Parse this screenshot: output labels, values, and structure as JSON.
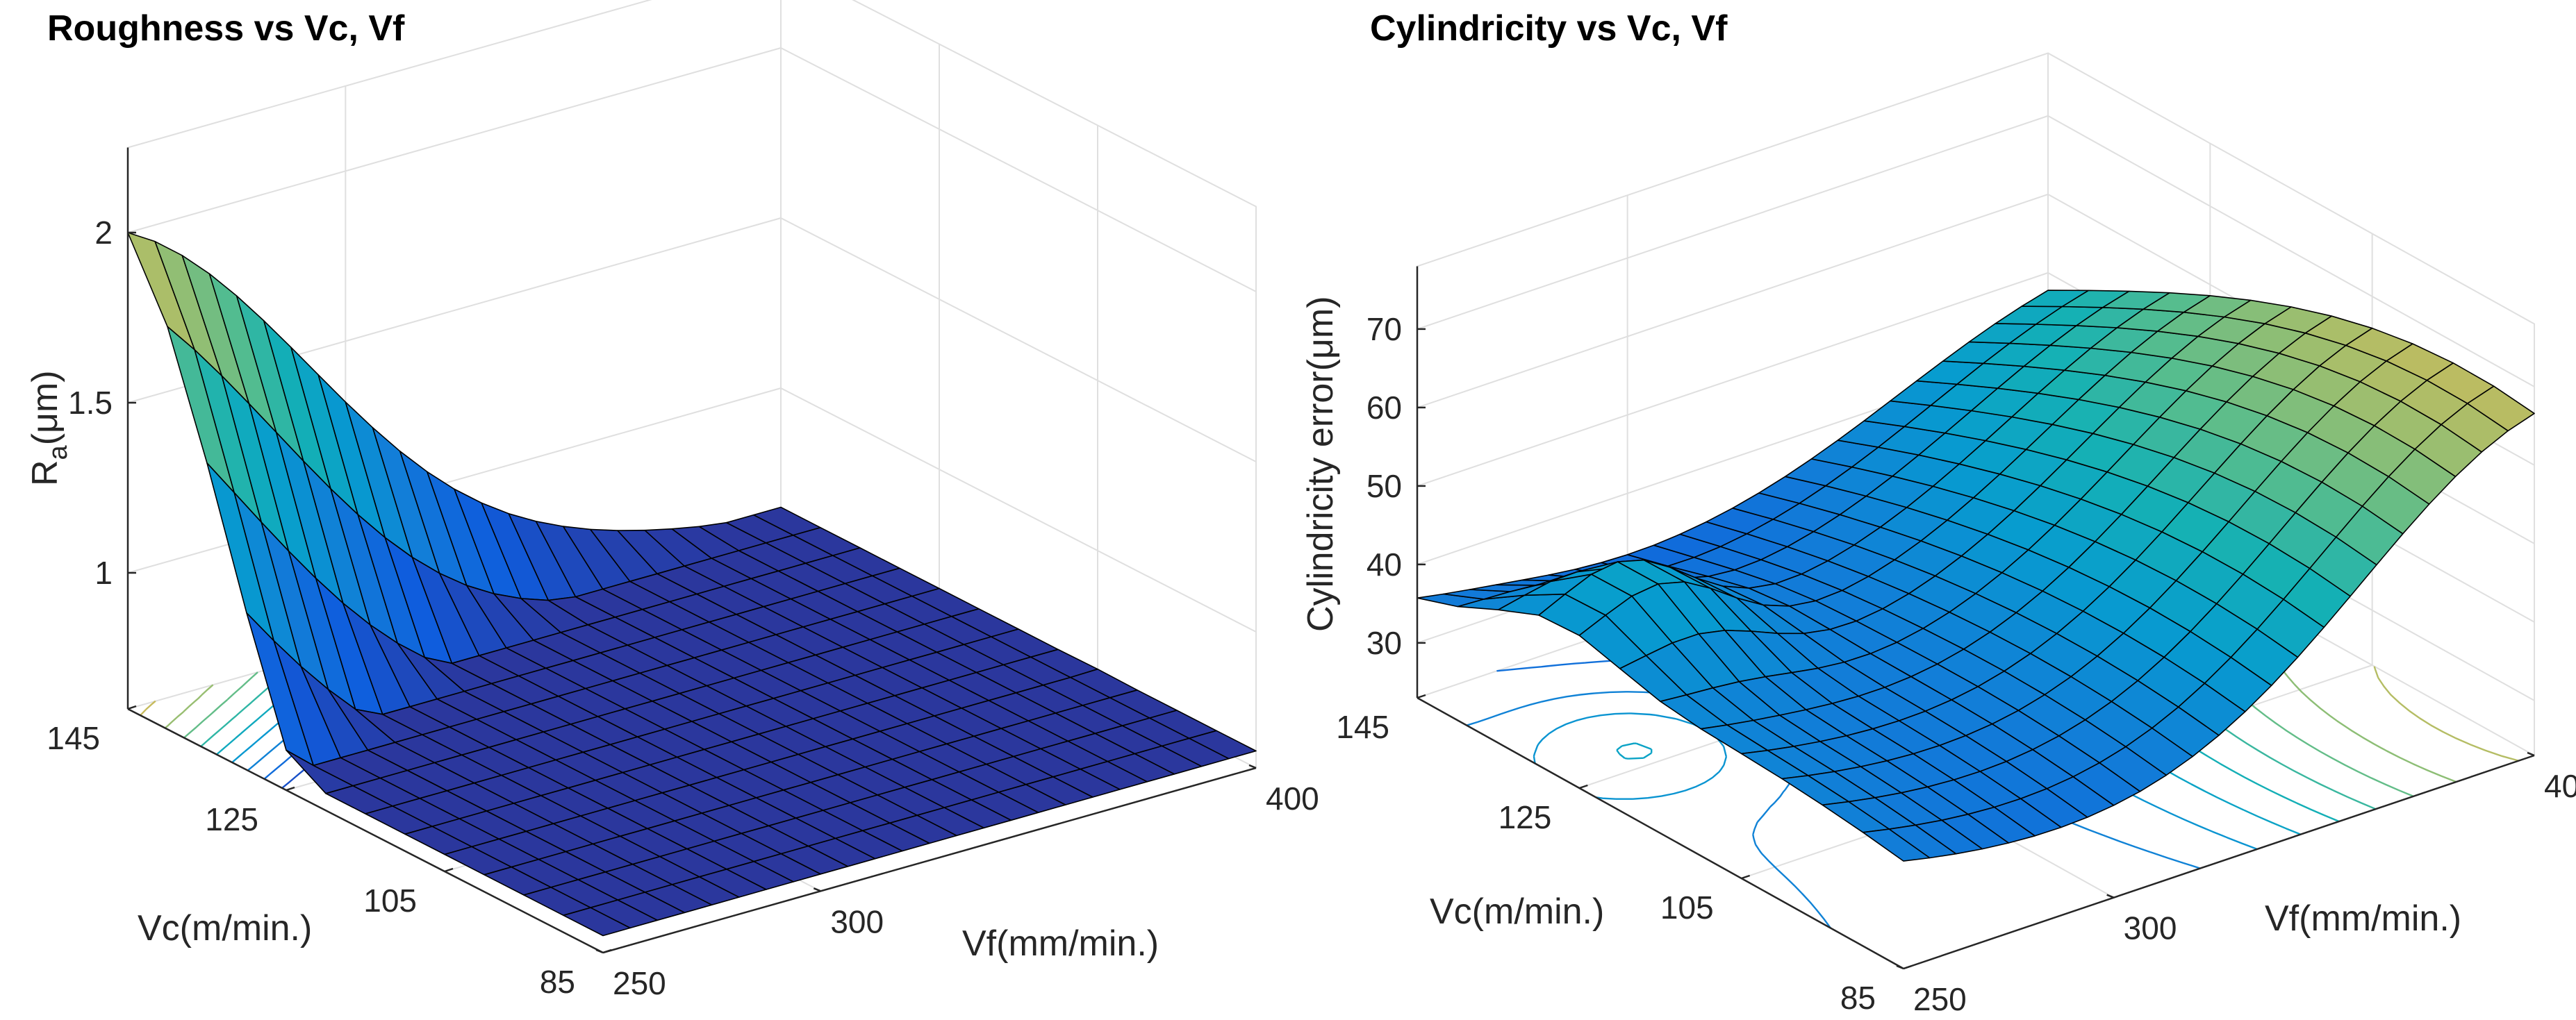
{
  "chart_data": [
    {
      "type": "surface",
      "title": "Roughness vs Vc, Vf",
      "xlabel": "Vf(mm/min.)",
      "ylabel": "Vc(m/min.)",
      "zlabel_main": "R",
      "zlabel_sub": "a",
      "zlabel_unit": "(μm)",
      "x_range": [
        250,
        400
      ],
      "y_range": [
        85,
        145
      ],
      "z_range": [
        0.6,
        2.25
      ],
      "x_ticks": [
        250,
        300,
        400
      ],
      "y_ticks": [
        85,
        105,
        125,
        145
      ],
      "z_ticks": [
        1,
        1.5,
        2
      ],
      "x_tick_labels": [
        "250",
        "300",
        "400"
      ],
      "y_tick_labels": [
        "85",
        "105",
        "125",
        "145"
      ],
      "z_tick_labels": [
        "1",
        "1.5",
        "2"
      ],
      "contour_levels": [
        0.75,
        0.9,
        1.05,
        1.2,
        1.35,
        1.5,
        1.65,
        1.8,
        1.95,
        2.1
      ],
      "model": {
        "kind": "ridge-valley",
        "ridge": {
          "x0": 250,
          "y0": 148,
          "k": 0.0088,
          "center": 2.12,
          "width": 8.5,
          "sharpness": 2.2
        },
        "valley": {
          "value": 0.74,
          "x0": 312,
          "y0": 94,
          "sx": 40,
          "sy": 15
        },
        "far_value": 1.15,
        "base_field": {
          "value": 0.98,
          "xc": 300,
          "yc": 118
        }
      },
      "surface_grid": {
        "nx": 24,
        "ny": 12
      }
    },
    {
      "type": "surface",
      "title": "Cylindricity vs Vc, Vf",
      "xlabel": "Vf(mm/min.)",
      "ylabel": "Vc(m/min.)",
      "zlabel": "Cylindricity error(μm)",
      "x_range": [
        250,
        400
      ],
      "y_range": [
        85,
        145
      ],
      "z_range": [
        23,
        78
      ],
      "x_ticks": [
        250,
        300,
        400
      ],
      "y_ticks": [
        85,
        105,
        125,
        145
      ],
      "z_ticks": [
        30,
        40,
        50,
        60,
        70
      ],
      "x_tick_labels": [
        "250",
        "300",
        "400"
      ],
      "y_tick_labels": [
        "85",
        "105",
        "125",
        "145"
      ],
      "z_tick_labels": [
        "30",
        "40",
        "50",
        "60",
        "70"
      ],
      "contour_levels": [
        30,
        34,
        38,
        42,
        46,
        50,
        54,
        58,
        62,
        66,
        70
      ],
      "model": {
        "kind": "saddle",
        "base": 34,
        "x_quad": {
          "x0": 325,
          "a": 0.0025
        },
        "y_quad": {
          "y0": 112,
          "b": -0.04
        },
        "bump": {
          "value": 44,
          "x0": 270,
          "y0": 128,
          "sx": 22,
          "sy": 10
        },
        "corner_lift": {
          "value": 30,
          "x0": 400,
          "y0": 85,
          "s": 45
        }
      },
      "surface_grid": {
        "nx": 24,
        "ny": 12
      }
    }
  ]
}
